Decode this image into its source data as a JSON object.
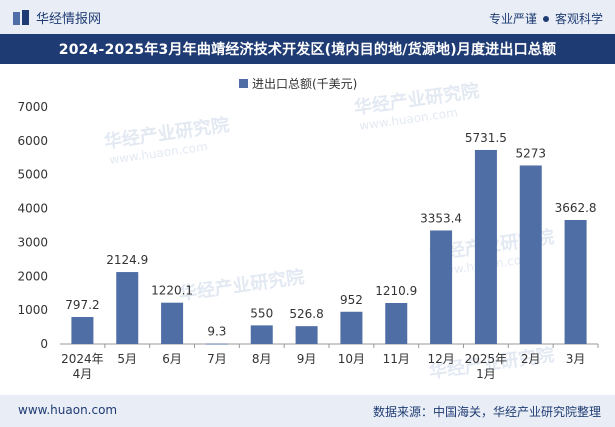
{
  "header": {
    "brand_name": "华经情报网",
    "tagline_left": "专业严谨",
    "tagline_right": "客观科学"
  },
  "chart_title": "2024-2025年3月年曲靖经济技术开发区(境内目的地/货源地)月度进出口总额",
  "footer": {
    "url": "www.huaon.com",
    "source": "数据来源：中国海关，华经产业研究院整理"
  },
  "watermark": {
    "text": "华经产业研究院",
    "url": "www.huaon.com"
  },
  "colors": {
    "bar": "#4e6ea5",
    "title_bg": "#1f3b73",
    "band_bg": "#e9eef6"
  },
  "chart_data": {
    "type": "bar",
    "title": "2024-2025年3月年曲靖经济技术开发区(境内目的地/货源地)月度进出口总额",
    "categories": [
      "2024年\n4月",
      "5月",
      "6月",
      "7月",
      "8月",
      "9月",
      "10月",
      "11月",
      "12月",
      "2025年\n1月",
      "2月",
      "3月"
    ],
    "series": [
      {
        "name": "进出口总额(千美元)",
        "values": [
          797.2,
          2124.9,
          1220.1,
          9.3,
          550,
          526.8,
          952,
          1210.9,
          3353.4,
          5731.5,
          5273,
          3662.8
        ]
      }
    ],
    "value_labels": [
      "797.2",
      "2124.9",
      "1220.1",
      "9.3",
      "550",
      "526.8",
      "952",
      "1210.9",
      "3353.4",
      "5731.5",
      "5273",
      "3662.8"
    ],
    "y_ticks": [
      0,
      1000,
      2000,
      3000,
      4000,
      5000,
      6000,
      7000
    ],
    "ylim": [
      0,
      7000
    ],
    "legend_position": "top-center",
    "grid": false,
    "xlabel": "",
    "ylabel": ""
  }
}
